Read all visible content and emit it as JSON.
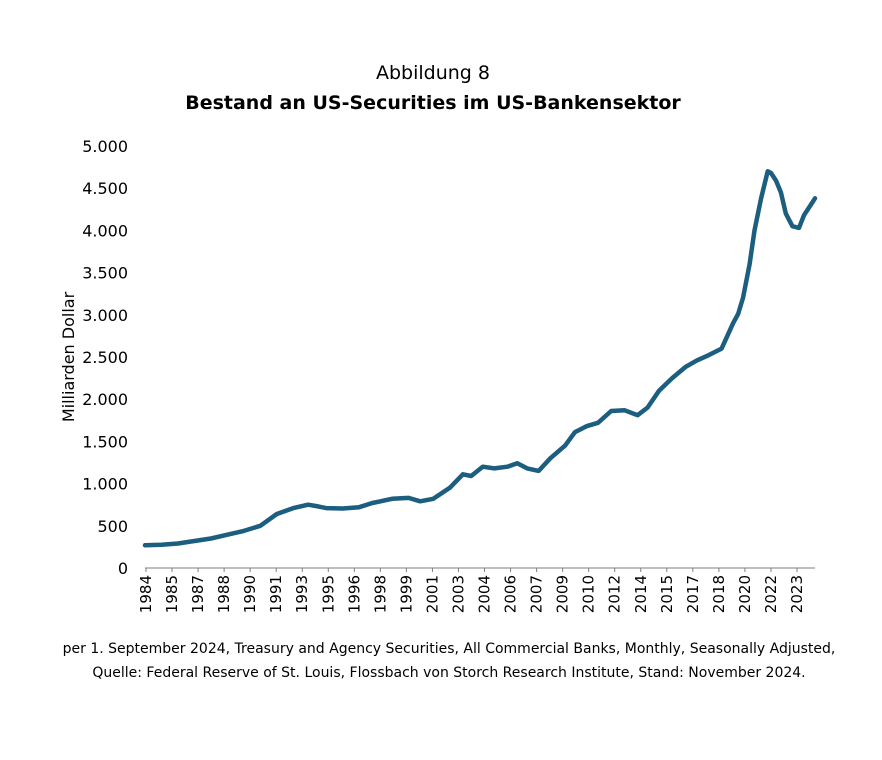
{
  "figure": {
    "label": "Abbildung 8",
    "title": "Bestand an US-Securities im US-Bankensektor",
    "caption_line1": "per 1. September 2024, Treasury and Agency Securities, All Commercial Banks, Monthly, Seasonally Adjusted,",
    "caption_line2": "Quelle: Federal Reserve of St. Louis, Flossbach von Storch Research Institute, Stand: November 2024."
  },
  "colors": {
    "line": "#1b5e80",
    "axis": "#7f7f7f",
    "text": "#000000"
  },
  "chart_data": {
    "type": "line",
    "title": "Bestand an US-Securities im US-Bankensektor",
    "xlabel": "",
    "ylabel": "Milliarden Dollar",
    "xlim": [
      1984.0,
      2024.67
    ],
    "ylim": [
      0,
      5000
    ],
    "grid": false,
    "legend": "none",
    "y_ticks": [
      {
        "value": 0,
        "label": "0"
      },
      {
        "value": 500,
        "label": "500"
      },
      {
        "value": 1000,
        "label": "1.000"
      },
      {
        "value": 1500,
        "label": "1.500"
      },
      {
        "value": 2000,
        "label": "2.000"
      },
      {
        "value": 2500,
        "label": "2.500"
      },
      {
        "value": 3000,
        "label": "3.000"
      },
      {
        "value": 3500,
        "label": "3.500"
      },
      {
        "value": 4000,
        "label": "4.000"
      },
      {
        "value": 4500,
        "label": "4.500"
      },
      {
        "value": 5000,
        "label": "5.000"
      }
    ],
    "x_ticks": [
      "1984",
      "1985",
      "1987",
      "1988",
      "1990",
      "1991",
      "1993",
      "1995",
      "1996",
      "1998",
      "1999",
      "2001",
      "2003",
      "2004",
      "2006",
      "2007",
      "2009",
      "2010",
      "2012",
      "2014",
      "2015",
      "2017",
      "2018",
      "2020",
      "2022",
      "2023"
    ],
    "series": [
      {
        "x": [
          1984.0,
          1985.0,
          1986.0,
          1987.0,
          1988.0,
          1989.0,
          1990.0,
          1991.0,
          1992.0,
          1993.0,
          1993.9,
          1994.5,
          1995.0,
          1996.0,
          1997.0,
          1997.8,
          1998.3,
          1999.0,
          2000.0,
          2000.7,
          2001.5,
          2002.5,
          2003.3,
          2003.8,
          2004.5,
          2005.2,
          2006.0,
          2006.6,
          2007.2,
          2007.9,
          2008.6,
          2009.5,
          2010.1,
          2010.8,
          2011.5,
          2012.3,
          2013.1,
          2013.9,
          2014.5,
          2015.2,
          2016.0,
          2016.8,
          2017.5,
          2018.2,
          2019.0,
          2019.7,
          2020.0,
          2020.3,
          2020.7,
          2021.0,
          2021.4,
          2021.8,
          2022.0,
          2022.3,
          2022.6,
          2022.9,
          2023.3,
          2023.7,
          2024.0,
          2024.4,
          2024.67
        ],
        "y": [
          270,
          275,
          290,
          320,
          350,
          395,
          440,
          500,
          640,
          710,
          750,
          730,
          710,
          705,
          720,
          770,
          790,
          820,
          830,
          790,
          820,
          950,
          1110,
          1090,
          1200,
          1180,
          1200,
          1240,
          1180,
          1150,
          1300,
          1450,
          1610,
          1680,
          1720,
          1860,
          1870,
          1810,
          1900,
          2100,
          2250,
          2380,
          2460,
          2520,
          2600,
          2900,
          3010,
          3200,
          3600,
          4000,
          4380,
          4700,
          4680,
          4590,
          4450,
          4200,
          4050,
          4030,
          4180,
          4300,
          4380
        ]
      }
    ]
  }
}
